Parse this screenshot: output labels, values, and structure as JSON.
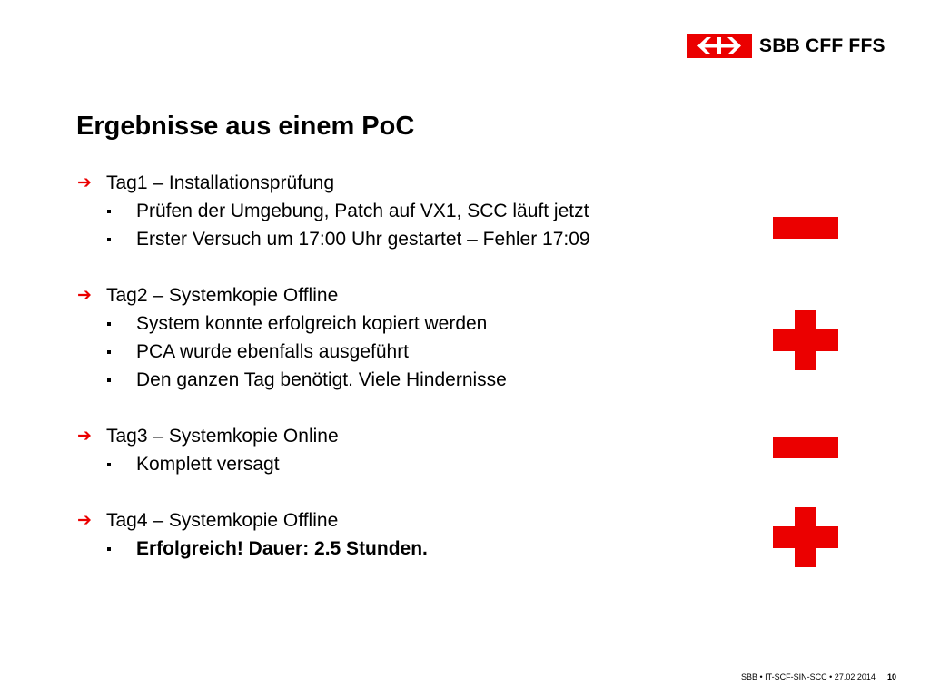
{
  "logo": {
    "text": "SBB CFF FFS"
  },
  "title": "Ergebnisse aus einem PoC",
  "groups": [
    {
      "heading": "Tag1 – Installationsprüfung",
      "items": [
        "Prüfen der Umgebung, Patch auf VX1, SCC läuft jetzt",
        "Erster Versuch um 17:00 Uhr gestartet – Fehler 17:09"
      ],
      "result": "minus"
    },
    {
      "heading": "Tag2 – Systemkopie Offline",
      "items": [
        "System konnte erfolgreich kopiert werden",
        "PCA wurde ebenfalls ausgeführt",
        "Den ganzen Tag benötigt. Viele Hindernisse"
      ],
      "result": "plus"
    },
    {
      "heading": "Tag3 – Systemkopie Online",
      "items": [
        "Komplett versagt"
      ],
      "result": "minus"
    },
    {
      "heading": "Tag4 – Systemkopie Offline",
      "items": [
        "Erfolgreich! Dauer: 2.5 Stunden."
      ],
      "result": "plus"
    }
  ],
  "footer": {
    "text": "SBB • IT-SCF-SIN-SCC • 27.02.2014",
    "page": "10"
  },
  "colors": {
    "accent": "#eb0000",
    "text": "#000000",
    "background": "#ffffff"
  },
  "icons": {
    "bullet": "arrow-right-icon",
    "subbullet": "square-bullet-icon",
    "good": "plus-icon",
    "bad": "minus-icon"
  }
}
